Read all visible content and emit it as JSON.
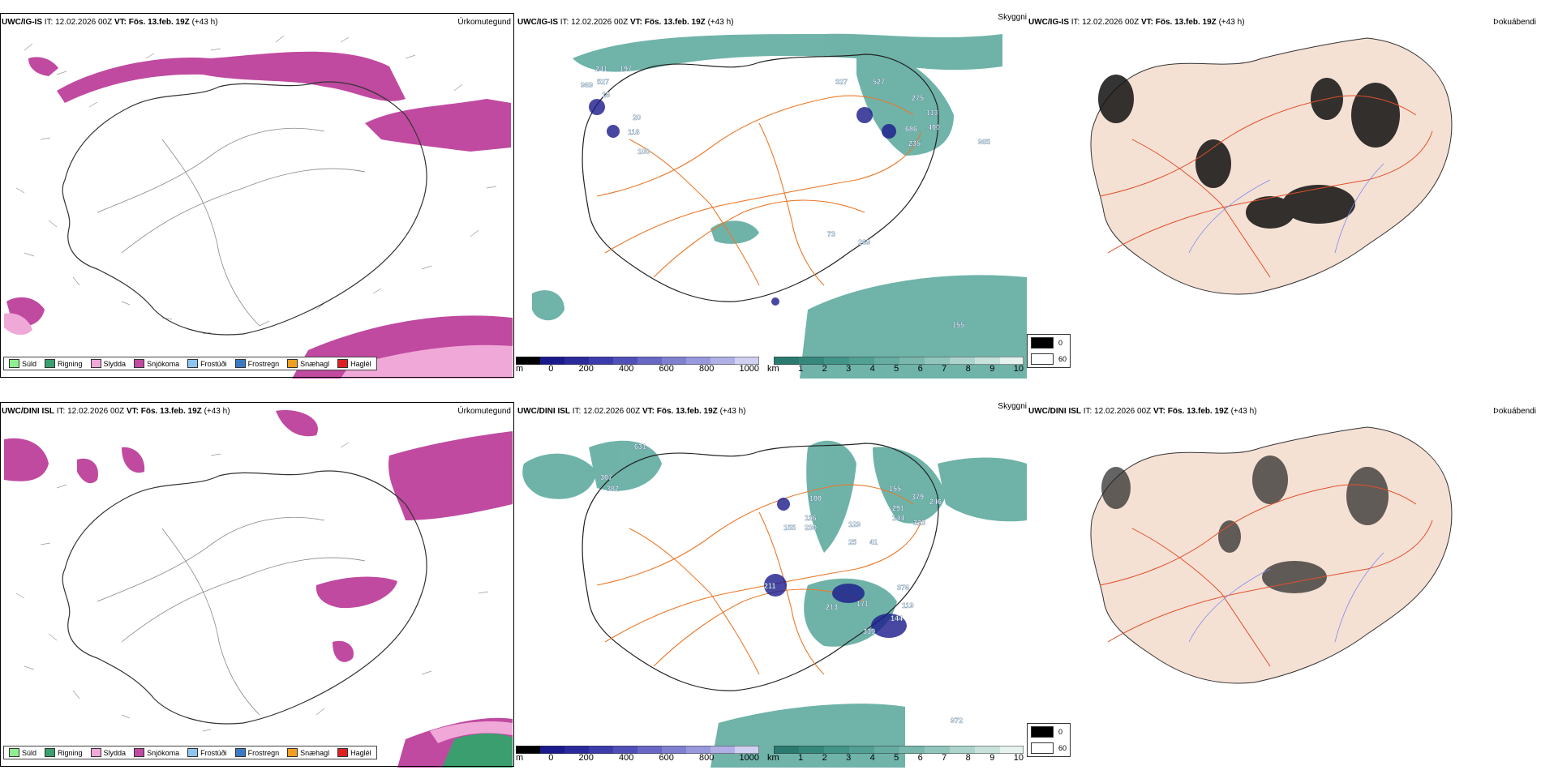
{
  "rows": [
    {
      "model": "UWC/IG-IS",
      "it_label": "IT:",
      "it_value": "12.02.2026 00Z",
      "vt_label": "VT:",
      "vt_value": "Fös. 13.feb. 19Z",
      "lead": "(+43 h)"
    },
    {
      "model": "UWC/DINI ISL",
      "it_label": "IT:",
      "it_value": "12.02.2026 00Z",
      "vt_label": "VT:",
      "vt_value": "Fös. 13.feb. 19Z",
      "lead": "(+43 h)"
    }
  ],
  "panels": {
    "precip_type_title": "Úrkomutegund",
    "visibility_title": "Skyggni",
    "fog_title": "Þokuábendi"
  },
  "precip_legend": [
    {
      "label": "Súld",
      "color": "#90ee90"
    },
    {
      "label": "Rigning",
      "color": "#3a9e6e"
    },
    {
      "label": "Slydda",
      "color": "#f0a8d8"
    },
    {
      "label": "Snjókoma",
      "color": "#c04aa0"
    },
    {
      "label": "Frostúði",
      "color": "#8ec5f0"
    },
    {
      "label": "Frostregn",
      "color": "#3a7ac4"
    },
    {
      "label": "Snæhagl",
      "color": "#f0a020"
    },
    {
      "label": "Haglél",
      "color": "#e02020"
    }
  ],
  "ceiling_scale": {
    "unit": "m",
    "ticks": [
      "0",
      "200",
      "400",
      "600",
      "800",
      "1000"
    ]
  },
  "visibility_scale": {
    "unit": "km",
    "ticks": [
      "1",
      "2",
      "3",
      "4",
      "5",
      "6",
      "7",
      "8",
      "9",
      "10"
    ]
  },
  "fog_legend": [
    {
      "label": "0",
      "color": "#000000"
    },
    {
      "label": "60",
      "color": "#ffffff"
    }
  ],
  "ceiling_labels_top": [
    "241",
    "197",
    "969",
    "527",
    "16",
    "20",
    "118",
    "100",
    "327",
    "527",
    "275",
    "113",
    "686",
    "400",
    "235",
    "985",
    "73",
    "269",
    "155"
  ],
  "ceiling_labels_bottom": [
    "631",
    "307",
    "382",
    "100",
    "155",
    "116",
    "230",
    "25",
    "41",
    "129",
    "155",
    "379",
    "291",
    "144",
    "246",
    "323",
    "211",
    "376",
    "213",
    "171",
    "119",
    "144",
    "339",
    "972"
  ],
  "colors": {
    "snow": "#c04aa0",
    "sleet": "#f0a8d8",
    "rain": "#3a9e6e",
    "vis_teal": "#3f9a8c",
    "ceiling_blue": "#1a1a8c",
    "road_orange": "#e87a2a",
    "land_fog": "#f5e0d4"
  }
}
